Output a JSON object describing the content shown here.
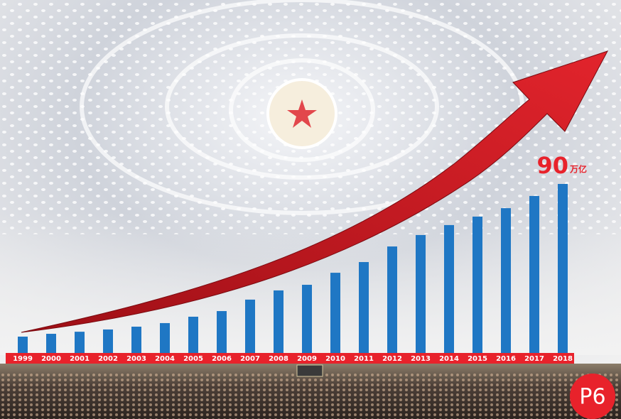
{
  "chart_data": {
    "type": "bar",
    "categories": [
      "1999",
      "2000",
      "2001",
      "2002",
      "2003",
      "2004",
      "2005",
      "2006",
      "2007",
      "2008",
      "2009",
      "2010",
      "2011",
      "2012",
      "2013",
      "2014",
      "2015",
      "2016",
      "2017",
      "2018"
    ],
    "values": [
      8.7,
      10.2,
      11.3,
      12.5,
      14.0,
      15.9,
      19.3,
      22.3,
      28.4,
      33.3,
      36.3,
      42.7,
      48.4,
      56.7,
      62.8,
      68.1,
      72.6,
      77.1,
      83.6,
      90
    ],
    "labeled_index": 19,
    "unit": "万亿",
    "color": "#1f77c4",
    "label_color": "#e8222b",
    "strip_color": "#e8222b"
  },
  "badge": "P6"
}
